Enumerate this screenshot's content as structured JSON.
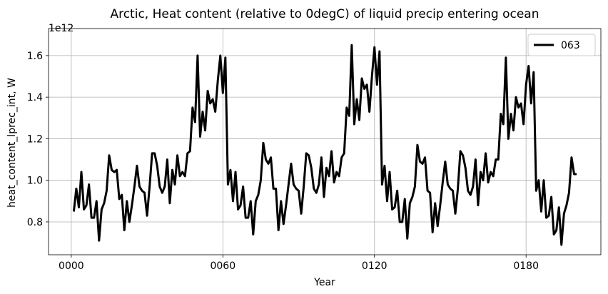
{
  "chart_data": {
    "type": "line",
    "title": "Arctic, Heat content (relative to 0degC) of liquid precip entering ocean",
    "xlabel": "Year",
    "ylabel": "heat_content_lprec_int, W",
    "y_offset_label": "1e12",
    "x": [
      1,
      2,
      3,
      4,
      5,
      6,
      7,
      8,
      9,
      10,
      11,
      12,
      13,
      14,
      15,
      16,
      17,
      18,
      19,
      20,
      21,
      22,
      23,
      24,
      25,
      26,
      27,
      28,
      29,
      30,
      31,
      32,
      33,
      34,
      35,
      36,
      37,
      38,
      39,
      40,
      41,
      42,
      43,
      44,
      45,
      46,
      47,
      48,
      49,
      50,
      51,
      52,
      53,
      54,
      55,
      56,
      57,
      58,
      59,
      60,
      61,
      62,
      63,
      64,
      65,
      66,
      67,
      68,
      69,
      70,
      71,
      72,
      73,
      74,
      75,
      76,
      77,
      78,
      79,
      80,
      81,
      82,
      83,
      84,
      85,
      86,
      87,
      88,
      89,
      90,
      91,
      92,
      93,
      94,
      95,
      96,
      97,
      98,
      99,
      100,
      101,
      102,
      103,
      104,
      105,
      106,
      107,
      108,
      109,
      110,
      111,
      112,
      113,
      114,
      115,
      116,
      117,
      118,
      119,
      120,
      121,
      122,
      123,
      124,
      125,
      126,
      127,
      128,
      129,
      130,
      131,
      132,
      133,
      134,
      135,
      136,
      137,
      138,
      139,
      140,
      141,
      142,
      143,
      144,
      145,
      146,
      147,
      148,
      149,
      150,
      151,
      152,
      153,
      154,
      155,
      156,
      157,
      158,
      159,
      160,
      161,
      162,
      163,
      164,
      165,
      166,
      167,
      168,
      169,
      170,
      171,
      172,
      173,
      174,
      175,
      176,
      177,
      178,
      179,
      180,
      181,
      182,
      183,
      184,
      185,
      186,
      187,
      188,
      189,
      190,
      191,
      192,
      193,
      194,
      195,
      196,
      197,
      198,
      199,
      200
    ],
    "series": [
      {
        "name": "063",
        "color": "#000000",
        "values": [
          0.85,
          0.96,
          0.87,
          1.04,
          0.86,
          0.88,
          0.98,
          0.82,
          0.82,
          0.9,
          0.71,
          0.86,
          0.89,
          0.95,
          1.12,
          1.05,
          1.04,
          1.05,
          0.91,
          0.93,
          0.76,
          0.9,
          0.8,
          0.88,
          0.97,
          1.07,
          0.97,
          0.95,
          0.94,
          0.83,
          0.97,
          1.13,
          1.13,
          1.07,
          0.97,
          0.94,
          0.97,
          1.1,
          0.89,
          1.05,
          0.98,
          1.12,
          1.02,
          1.04,
          1.02,
          1.13,
          1.14,
          1.35,
          1.28,
          1.6,
          1.21,
          1.33,
          1.24,
          1.43,
          1.37,
          1.39,
          1.33,
          1.48,
          1.6,
          1.42,
          1.59,
          0.98,
          1.05,
          0.9,
          1.04,
          0.86,
          0.88,
          0.97,
          0.82,
          0.82,
          0.9,
          0.74,
          0.9,
          0.93,
          1.0,
          1.18,
          1.1,
          1.08,
          1.11,
          0.96,
          0.96,
          0.76,
          0.9,
          0.79,
          0.88,
          0.98,
          1.08,
          0.98,
          0.96,
          0.95,
          0.84,
          0.97,
          1.13,
          1.12,
          1.06,
          0.96,
          0.94,
          0.98,
          1.11,
          0.92,
          1.06,
          1.02,
          1.14,
          0.99,
          1.04,
          1.02,
          1.11,
          1.13,
          1.35,
          1.31,
          1.65,
          1.27,
          1.39,
          1.29,
          1.49,
          1.44,
          1.46,
          1.33,
          1.5,
          1.64,
          1.46,
          1.62,
          0.98,
          1.07,
          0.9,
          1.04,
          0.86,
          0.87,
          0.95,
          0.8,
          0.8,
          0.91,
          0.72,
          0.89,
          0.92,
          0.97,
          1.17,
          1.09,
          1.08,
          1.11,
          0.95,
          0.94,
          0.75,
          0.89,
          0.78,
          0.88,
          0.99,
          1.09,
          0.98,
          0.96,
          0.95,
          0.84,
          0.96,
          1.14,
          1.12,
          1.06,
          0.95,
          0.93,
          0.97,
          1.1,
          0.88,
          1.04,
          1.0,
          1.13,
          0.99,
          1.04,
          1.02,
          1.1,
          1.1,
          1.32,
          1.27,
          1.59,
          1.2,
          1.32,
          1.24,
          1.4,
          1.35,
          1.37,
          1.27,
          1.46,
          1.55,
          1.37,
          1.52,
          0.95,
          1.0,
          0.85,
          1.0,
          0.82,
          0.83,
          0.92,
          0.74,
          0.76,
          0.87,
          0.69,
          0.84,
          0.88,
          0.94,
          1.11,
          1.03,
          1.03
        ]
      }
    ],
    "xlim": [
      -9,
      209.6
    ],
    "ylim": [
      0.642,
      1.73
    ],
    "xticks": [
      {
        "value": 0,
        "label": "0000"
      },
      {
        "value": 60,
        "label": "0060"
      },
      {
        "value": 120,
        "label": "0120"
      },
      {
        "value": 180,
        "label": "0180"
      }
    ],
    "yticks": [
      0.8,
      {
        "value": 1,
        "label": "1.0"
      },
      1.2,
      1.4,
      1.6
    ],
    "grid": true,
    "legend": "upper right"
  }
}
